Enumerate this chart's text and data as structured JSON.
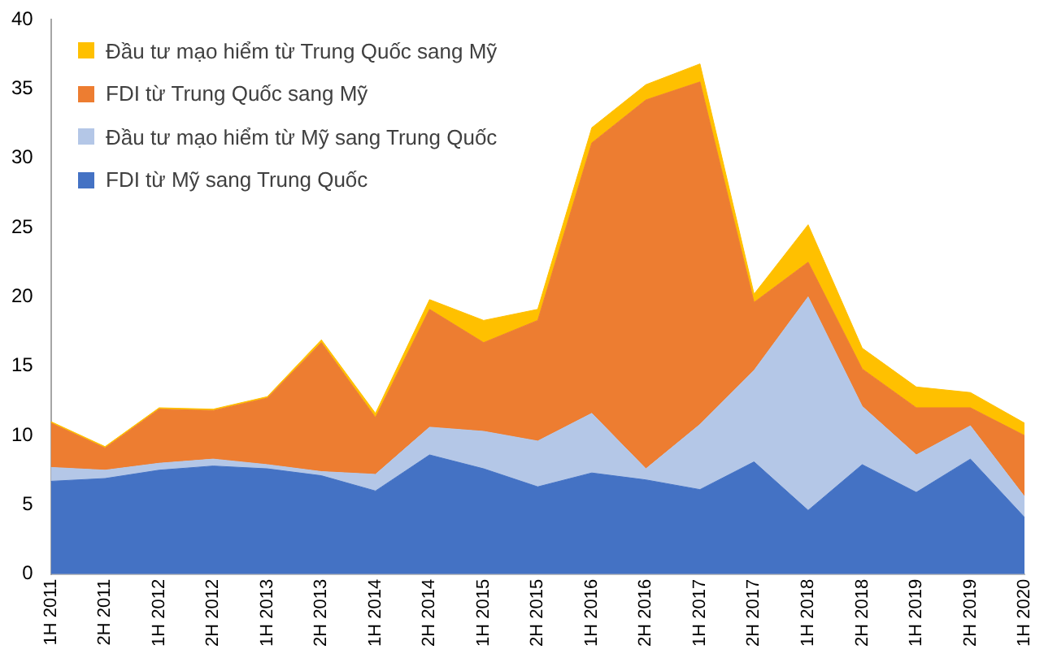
{
  "chart_data": {
    "type": "area",
    "stacked": true,
    "legend": "top left",
    "grid": false,
    "categories": [
      "1H 2011",
      "2H 2011",
      "1H 2012",
      "2H 2012",
      "1H 2013",
      "2H 2013",
      "1H 2014",
      "2H 2014",
      "1H 2015",
      "2H 2015",
      "1H 2016",
      "2H 2016",
      "1H 2017",
      "2H 2017",
      "1H 2018",
      "2H 2018",
      "1H 2019",
      "2H 2019",
      "1H 2020"
    ],
    "ylim": [
      0,
      40
    ],
    "yticks": [
      0,
      5,
      10,
      15,
      20,
      25,
      30,
      35,
      40
    ],
    "series": [
      {
        "name": "FDI từ Mỹ sang Trung Quốc",
        "color": "#4472c4",
        "values": [
          6.7,
          6.9,
          7.5,
          7.8,
          7.6,
          7.1,
          6.0,
          8.6,
          7.6,
          6.3,
          7.3,
          6.8,
          6.1,
          8.1,
          4.6,
          7.9,
          5.9,
          8.3,
          4.1
        ]
      },
      {
        "name": "Đầu tư mạo hiểm từ Mỹ sang Trung Quốc",
        "color": "#b4c7e7",
        "values": [
          1.0,
          0.6,
          0.5,
          0.5,
          0.3,
          0.3,
          1.2,
          2.0,
          2.7,
          3.3,
          4.3,
          0.8,
          4.7,
          6.6,
          15.4,
          4.2,
          2.7,
          2.4,
          1.5
        ]
      },
      {
        "name": "FDI từ Trung Quốc sang Mỹ",
        "color": "#ed7d31",
        "values": [
          3.2,
          1.6,
          3.9,
          3.5,
          4.8,
          9.3,
          4.1,
          8.5,
          6.4,
          8.7,
          19.5,
          26.6,
          24.7,
          4.9,
          2.5,
          2.7,
          3.4,
          1.3,
          4.4
        ]
      },
      {
        "name": "Đầu tư mạo hiểm từ Trung Quốc sang Mỹ",
        "color": "#ffc000",
        "values": [
          0.1,
          0.1,
          0.1,
          0.1,
          0.1,
          0.2,
          0.3,
          0.7,
          1.6,
          0.8,
          1.1,
          1.1,
          1.3,
          0.6,
          2.7,
          1.5,
          1.5,
          1.1,
          0.9
        ]
      }
    ]
  }
}
